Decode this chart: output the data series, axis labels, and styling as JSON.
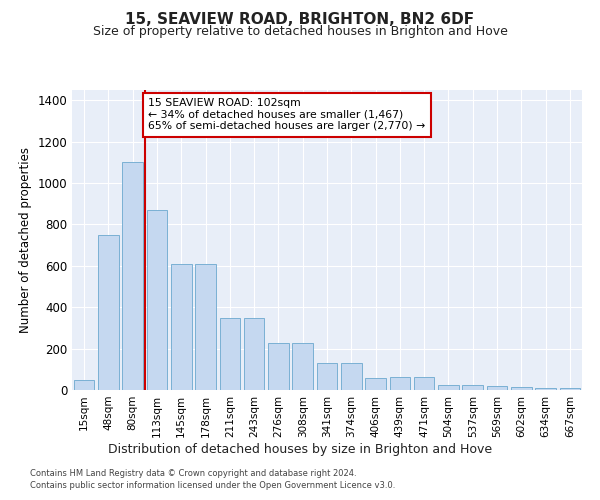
{
  "title": "15, SEAVIEW ROAD, BRIGHTON, BN2 6DF",
  "subtitle": "Size of property relative to detached houses in Brighton and Hove",
  "xlabel": "Distribution of detached houses by size in Brighton and Hove",
  "ylabel": "Number of detached properties",
  "categories": [
    "15sqm",
    "48sqm",
    "80sqm",
    "113sqm",
    "145sqm",
    "178sqm",
    "211sqm",
    "243sqm",
    "276sqm",
    "308sqm",
    "341sqm",
    "374sqm",
    "406sqm",
    "439sqm",
    "471sqm",
    "504sqm",
    "537sqm",
    "569sqm",
    "602sqm",
    "634sqm",
    "667sqm"
  ],
  "values": [
    50,
    750,
    1100,
    870,
    610,
    610,
    350,
    350,
    225,
    225,
    130,
    130,
    60,
    65,
    65,
    25,
    25,
    20,
    15,
    10,
    10
  ],
  "bar_color": "#c5d8f0",
  "bar_edge_color": "#7ab0d4",
  "vline_x": 2.5,
  "vline_color": "#cc0000",
  "annotation_text": "15 SEAVIEW ROAD: 102sqm\n← 34% of detached houses are smaller (1,467)\n65% of semi-detached houses are larger (2,770) →",
  "annotation_box_color": "#ffffff",
  "annotation_box_edge": "#cc0000",
  "ylim": [
    0,
    1450
  ],
  "yticks": [
    0,
    200,
    400,
    600,
    800,
    1000,
    1200,
    1400
  ],
  "footnote1": "Contains HM Land Registry data © Crown copyright and database right 2024.",
  "footnote2": "Contains public sector information licensed under the Open Government Licence v3.0.",
  "bg_color": "#e8eef8",
  "fig_bg_color": "#ffffff"
}
